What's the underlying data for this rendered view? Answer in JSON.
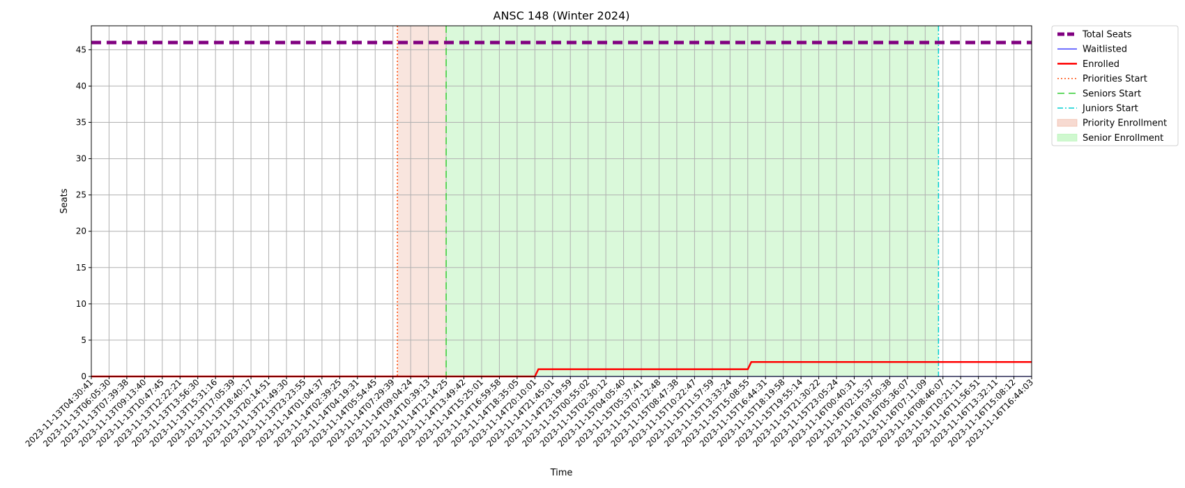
{
  "chart_data": {
    "type": "line",
    "title": "ANSC 148 (Winter 2024)",
    "xlabel": "Time",
    "ylabel": "Seats",
    "ylim": [
      0,
      48.3
    ],
    "yticks": [
      0,
      5,
      10,
      15,
      20,
      25,
      30,
      35,
      40,
      45
    ],
    "grid": true,
    "legend_position": "outside-top-right",
    "x_categories": [
      "2023-11-13T04:30:41",
      "2023-11-13T06:05:30",
      "2023-11-13T07:39:38",
      "2023-11-13T09:13:40",
      "2023-11-13T10:47:45",
      "2023-11-13T12:22:21",
      "2023-11-13T13:56:30",
      "2023-11-13T15:31:16",
      "2023-11-13T17:05:39",
      "2023-11-13T18:40:17",
      "2023-11-13T20:14:51",
      "2023-11-13T21:49:30",
      "2023-11-13T23:23:55",
      "2023-11-14T01:04:37",
      "2023-11-14T02:39:25",
      "2023-11-14T04:19:31",
      "2023-11-14T05:54:45",
      "2023-11-14T07:29:39",
      "2023-11-14T09:04:24",
      "2023-11-14T10:39:13",
      "2023-11-14T12:14:25",
      "2023-11-14T13:49:42",
      "2023-11-14T15:25:01",
      "2023-11-14T16:59:58",
      "2023-11-14T18:35:05",
      "2023-11-14T20:10:01",
      "2023-11-14T21:45:01",
      "2023-11-14T23:19:59",
      "2023-11-15T00:55:02",
      "2023-11-15T02:30:12",
      "2023-11-15T04:05:40",
      "2023-11-15T05:37:41",
      "2023-11-15T07:12:48",
      "2023-11-15T08:47:38",
      "2023-11-15T10:22:47",
      "2023-11-15T11:57:59",
      "2023-11-15T13:33:24",
      "2023-11-15T15:08:55",
      "2023-11-15T16:44:31",
      "2023-11-15T18:19:58",
      "2023-11-15T19:55:14",
      "2023-11-15T21:30:22",
      "2023-11-15T23:05:24",
      "2023-11-16T00:40:31",
      "2023-11-16T02:15:37",
      "2023-11-16T03:50:38",
      "2023-11-16T05:36:07",
      "2023-11-16T07:11:09",
      "2023-11-16T08:46:07",
      "2023-11-16T10:21:11",
      "2023-11-16T11:56:51",
      "2023-11-16T13:32:11",
      "2023-11-16T15:08:12",
      "2023-11-16T16:44:03"
    ],
    "x_index_range": [
      0,
      53
    ],
    "series": [
      {
        "name": "Total Seats",
        "color": "#800080",
        "style": "dashed",
        "points": [
          [
            0,
            46
          ],
          [
            53,
            46
          ]
        ]
      },
      {
        "name": "Waitlisted",
        "color": "#0000ff",
        "style": "solid-thin",
        "points": [
          [
            0,
            0
          ],
          [
            53,
            0
          ]
        ]
      },
      {
        "name": "Enrolled",
        "color": "#ff0000",
        "style": "solid",
        "points": [
          [
            0,
            0
          ],
          [
            25.0,
            0
          ],
          [
            25.2,
            1
          ],
          [
            37.0,
            1
          ],
          [
            37.2,
            2
          ],
          [
            53,
            2
          ]
        ]
      }
    ],
    "vertical_lines": [
      {
        "name": "Priorities Start",
        "x": 17.25,
        "color": "#ff4500",
        "style": "dotted"
      },
      {
        "name": "Seniors Start",
        "x": 20.0,
        "color": "#32cd32",
        "style": "dashed"
      },
      {
        "name": "Juniors Start",
        "x": 47.75,
        "color": "#00ced1",
        "style": "dashdot"
      }
    ],
    "shaded_regions": [
      {
        "name": "Priority Enrollment",
        "from": 17.25,
        "to": 20.0,
        "color": "#e9967a",
        "opacity": 0.25
      },
      {
        "name": "Senior Enrollment",
        "from": 20.0,
        "to": 47.75,
        "color": "#90ee90",
        "opacity": 0.33
      }
    ]
  }
}
